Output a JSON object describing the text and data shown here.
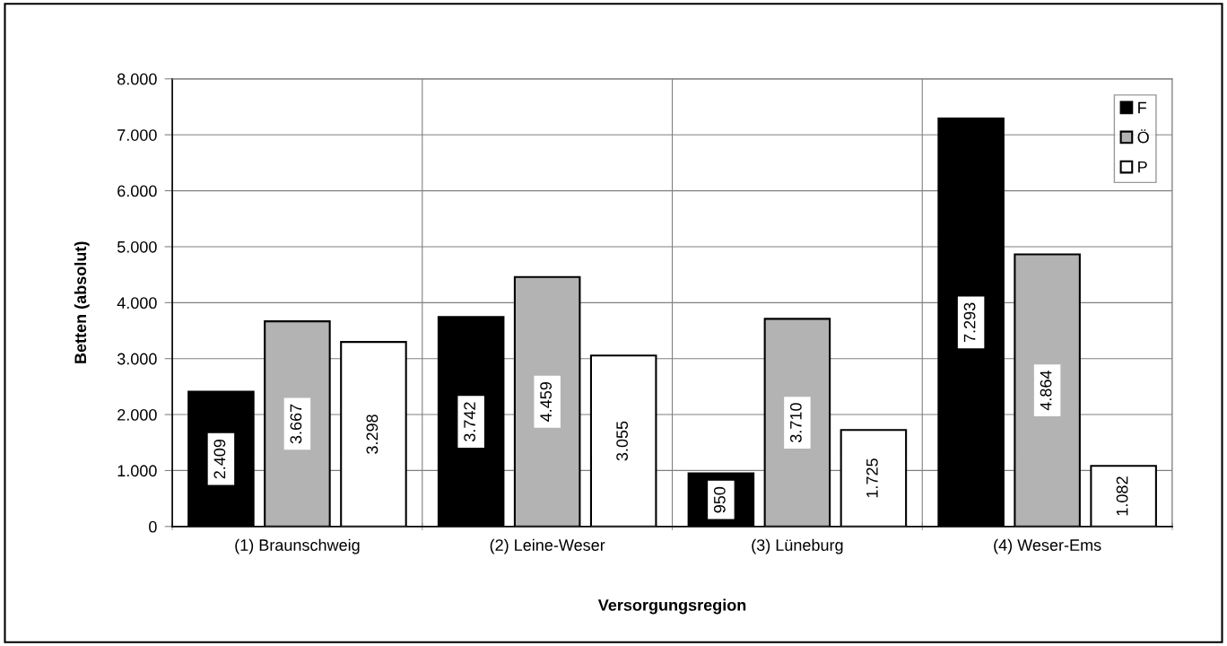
{
  "chart_data": {
    "type": "bar",
    "xlabel": "Versorgungsregion",
    "ylabel": "Betten (absolut)",
    "categories": [
      "(1) Braunschweig",
      "(2) Leine-Weser",
      "(3) Lüneburg",
      "(4) Weser-Ems"
    ],
    "series": [
      {
        "name": "F",
        "color": "#000000",
        "values": [
          2409,
          3742,
          950,
          7293
        ],
        "value_labels": [
          "2.409",
          "3.742",
          "950",
          "7.293"
        ]
      },
      {
        "name": "Ö",
        "color": "#b3b3b3",
        "values": [
          3667,
          4459,
          3710,
          4864
        ],
        "value_labels": [
          "3.667",
          "4.459",
          "3.710",
          "4.864"
        ]
      },
      {
        "name": "P",
        "color": "#ffffff",
        "values": [
          3298,
          3055,
          1725,
          1082
        ],
        "value_labels": [
          "3.298",
          "3.055",
          "1.725",
          "1.082"
        ]
      }
    ],
    "ylim": [
      0,
      8000
    ],
    "yticks": [
      {
        "value": 0,
        "label": "0"
      },
      {
        "value": 1000,
        "label": "1.000"
      },
      {
        "value": 2000,
        "label": "2.000"
      },
      {
        "value": 3000,
        "label": "3.000"
      },
      {
        "value": 4000,
        "label": "4.000"
      },
      {
        "value": 5000,
        "label": "5.000"
      },
      {
        "value": 6000,
        "label": "6.000"
      },
      {
        "value": 7000,
        "label": "7.000"
      },
      {
        "value": 8000,
        "label": "8.000"
      }
    ],
    "grid": true,
    "legend": "top right"
  }
}
